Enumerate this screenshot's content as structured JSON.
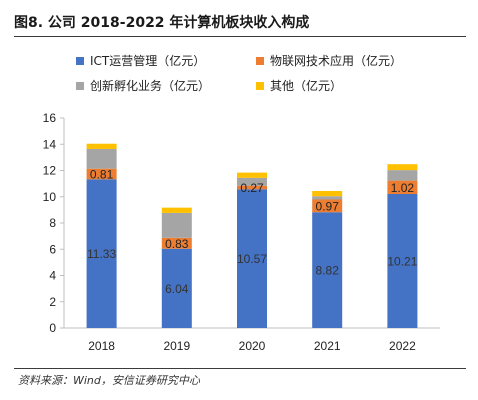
{
  "figure": {
    "title": "图8. 公司 2018-2022 年计算机板块收入构成",
    "source": "资料来源：Wind，安信证券研究中心"
  },
  "colors": {
    "ict": "#4472c4",
    "iot": "#ed7d31",
    "incubation": "#a5a5a5",
    "other": "#ffc000"
  },
  "chart_data": {
    "type": "bar",
    "stacked": true,
    "categories": [
      "2018",
      "2019",
      "2020",
      "2021",
      "2022"
    ],
    "ylim": [
      0,
      16
    ],
    "yticks": [
      0,
      2,
      4,
      6,
      8,
      10,
      12,
      14,
      16
    ],
    "grid": false,
    "legend_position": "top",
    "series": [
      {
        "name": "ICT运营管理（亿元）",
        "color": "#4472c4",
        "values": [
          11.33,
          6.04,
          10.57,
          8.82,
          10.21
        ],
        "labels": [
          "11.33",
          "6.04",
          "10.57",
          "8.82",
          "10.21"
        ]
      },
      {
        "name": "物联网技术应用（亿元）",
        "color": "#ed7d31",
        "values": [
          0.81,
          0.83,
          0.27,
          0.97,
          1.02
        ],
        "labels": [
          "0.81",
          "0.83",
          "0.27",
          "0.97",
          "1.02"
        ]
      },
      {
        "name": "创新孵化业务（亿元）",
        "color": "#a5a5a5",
        "values": [
          1.5,
          1.9,
          0.6,
          0.25,
          0.8
        ],
        "labels": [
          "",
          "",
          "",
          "",
          ""
        ]
      },
      {
        "name": "其他（亿元）",
        "color": "#ffc000",
        "values": [
          0.4,
          0.4,
          0.4,
          0.4,
          0.45
        ],
        "labels": [
          "",
          "",
          "",
          "",
          ""
        ]
      }
    ]
  }
}
